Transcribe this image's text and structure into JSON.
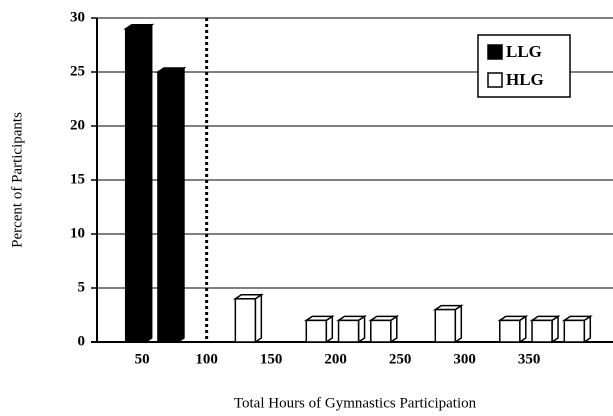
{
  "chart_data": {
    "type": "bar3d",
    "xlabel": "Total Hours of Gymnastics Participation",
    "ylabel": "Percent of Participants",
    "series": [
      {
        "name": "LLG",
        "color": "#000000",
        "x": [
          45,
          70
        ],
        "values": [
          29,
          25
        ]
      },
      {
        "name": "HLG",
        "color": "#ffffff",
        "x": [
          130,
          185,
          210,
          235,
          285,
          335,
          360,
          385
        ],
        "values": [
          4,
          2,
          2,
          2,
          3,
          2,
          2,
          2
        ]
      }
    ],
    "reference_line_x": 100,
    "xlim": [
      15,
      415
    ],
    "xticks": [
      50,
      100,
      150,
      200,
      250,
      300,
      350
    ],
    "ylim": [
      0,
      30
    ],
    "yticks": [
      0,
      5,
      10,
      15,
      20,
      25,
      30
    ],
    "grid": true,
    "legend": "upper right"
  }
}
